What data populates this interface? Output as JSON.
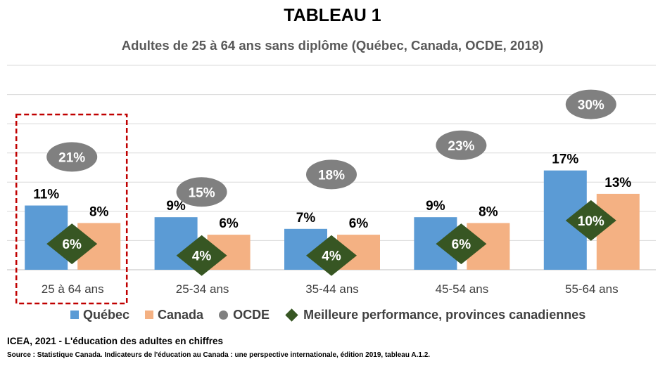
{
  "title": "TABLEAU 1",
  "subtitle": "Adultes de 25 à 64 ans sans diplôme (Québec, Canada, OCDE, 2018)",
  "chart_data": {
    "type": "bar",
    "title": "TABLEAU 1",
    "subtitle": "Adultes de 25 à 64 ans sans diplôme (Québec, Canada, OCDE, 2018)",
    "categories": [
      "25 à 64 ans",
      "25-34 ans",
      "35-44 ans",
      "45-54 ans",
      "55-64 ans"
    ],
    "series": [
      {
        "name": "Québec",
        "kind": "bar",
        "color": "#5b9bd5",
        "values": [
          11,
          9,
          7,
          9,
          17
        ],
        "labels": [
          "11%",
          "9%",
          "7%",
          "9%",
          "17%"
        ]
      },
      {
        "name": "Canada",
        "kind": "bar",
        "color": "#f4b183",
        "values": [
          8,
          6,
          6,
          8,
          13
        ],
        "labels": [
          "8%",
          "6%",
          "6%",
          "8%",
          "13%"
        ]
      },
      {
        "name": "OCDE",
        "kind": "oval-marker",
        "color": "#808080",
        "values": [
          21,
          15,
          18,
          23,
          30
        ],
        "labels": [
          "21%",
          "15%",
          "18%",
          "23%",
          "30%"
        ]
      },
      {
        "name": "Meilleure performance, provinces canadiennes",
        "kind": "diamond-marker",
        "color": "#375623",
        "values": [
          6,
          4,
          4,
          6,
          10
        ],
        "labels": [
          "6%",
          "4%",
          "4%",
          "6%",
          "10%"
        ]
      }
    ],
    "ylim": [
      0,
      35
    ],
    "grid": true,
    "highlighted_category": "25 à 64 ans",
    "legend_position": "bottom"
  },
  "legend": {
    "quebec": "Québec",
    "canada": "Canada",
    "ocde": "OCDE",
    "best": "Meilleure performance, provinces canadiennes"
  },
  "colors": {
    "quebec": "#5b9bd5",
    "canada": "#f4b183",
    "ocde": "#808080",
    "best": "#375623",
    "highlight": "#c00000"
  },
  "footer": {
    "credit": "ICEA, 2021 - L'éducation des adultes en chiffres",
    "source": "Source : Statistique Canada.  Indicateurs de l'éducation au Canada : une perspective internationale,  édition 2019, tableau A.1.2."
  }
}
